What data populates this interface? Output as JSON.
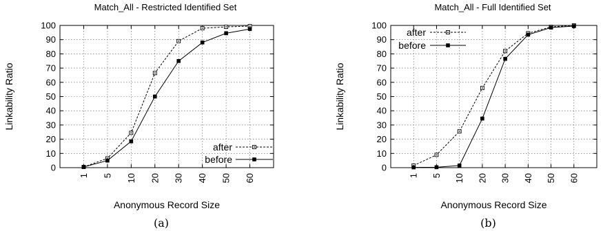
{
  "chart_data": [
    {
      "type": "line",
      "title": "Match_All - Restricted Identified Set",
      "xlabel": "Anonymous Record Size",
      "ylabel": "Linkability Ratio",
      "caption": "(a)",
      "categories": [
        "1",
        "5",
        "10",
        "20",
        "30",
        "40",
        "50",
        "60"
      ],
      "ylim": [
        0,
        100
      ],
      "yticks": [
        0,
        10,
        20,
        30,
        40,
        50,
        60,
        70,
        80,
        90,
        100
      ],
      "grid": true,
      "legend_position": "bottom-right",
      "series": [
        {
          "name": "after",
          "values": [
            0.5,
            6.5,
            24.5,
            66.5,
            89,
            98,
            99,
            99.5
          ],
          "style": "dashed",
          "marker": "open-square"
        },
        {
          "name": "before",
          "values": [
            0.5,
            5,
            18.5,
            50,
            75,
            88,
            94.5,
            97.5
          ],
          "style": "solid",
          "marker": "filled-square"
        }
      ]
    },
    {
      "type": "line",
      "title": "Match_All - Full Identified Set",
      "xlabel": "Anonymous Record Size",
      "ylabel": "Linkability Ratio",
      "caption": "(b)",
      "categories": [
        "1",
        "5",
        "10",
        "20",
        "30",
        "40",
        "50",
        "60"
      ],
      "ylim": [
        0,
        100
      ],
      "yticks": [
        0,
        10,
        20,
        30,
        40,
        50,
        60,
        70,
        80,
        90,
        100
      ],
      "grid": true,
      "legend_position": "top-left",
      "series": [
        {
          "name": "after",
          "values": [
            1.5,
            9,
            25.5,
            56,
            82,
            94.5,
            99,
            100
          ],
          "style": "dashed",
          "marker": "open-square"
        },
        {
          "name": "before",
          "values": [
            0.2,
            0.3,
            1.5,
            34.5,
            76.5,
            93.5,
            98.5,
            99.5
          ],
          "style": "solid",
          "marker": "filled-square"
        }
      ]
    }
  ]
}
